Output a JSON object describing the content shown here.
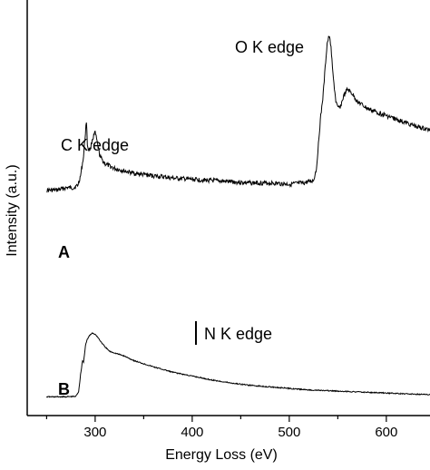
{
  "chart_data": {
    "type": "line",
    "xlabel": "Energy Loss (eV)",
    "ylabel": "Intensity (a.u.)",
    "xlim": [
      230,
      645
    ],
    "x_ticks": [
      300,
      400,
      500,
      600
    ],
    "y_ticks_shown": false,
    "grid": false,
    "legend": "none",
    "annotations": [
      {
        "text": "C K edge",
        "x": 290
      },
      {
        "text": "O K edge",
        "x": 540
      },
      {
        "text": "N K edge",
        "x": 400
      }
    ],
    "series": [
      {
        "name": "A",
        "x": [
          250,
          260,
          270,
          278,
          282,
          285,
          288,
          290,
          291,
          292,
          293,
          295,
          297,
          300,
          302,
          305,
          310,
          320,
          340,
          360,
          380,
          400,
          420,
          440,
          460,
          480,
          500,
          515,
          525,
          528,
          530,
          532,
          535,
          537,
          539,
          541,
          543,
          545,
          548,
          550,
          553,
          556,
          560,
          565,
          570,
          580,
          600,
          620,
          635,
          645
        ],
        "y": [
          0.36,
          0.36,
          0.37,
          0.37,
          0.38,
          0.42,
          0.5,
          0.6,
          0.65,
          0.55,
          0.53,
          0.53,
          0.57,
          0.6,
          0.56,
          0.5,
          0.47,
          0.45,
          0.43,
          0.42,
          0.41,
          0.405,
          0.4,
          0.395,
          0.39,
          0.39,
          0.385,
          0.39,
          0.4,
          0.45,
          0.55,
          0.65,
          0.76,
          0.87,
          0.97,
          1.0,
          0.96,
          0.84,
          0.73,
          0.7,
          0.71,
          0.75,
          0.78,
          0.76,
          0.73,
          0.7,
          0.67,
          0.64,
          0.62,
          0.61
        ]
      },
      {
        "name": "B",
        "x": [
          250,
          270,
          280,
          283,
          285,
          287,
          288,
          289,
          290,
          292,
          294,
          297,
          300,
          303,
          305,
          310,
          315,
          320,
          330,
          340,
          360,
          380,
          400,
          420,
          440,
          460,
          480,
          500,
          520,
          540,
          560,
          580,
          600,
          620,
          645
        ],
        "y": [
          0.015,
          0.016,
          0.018,
          0.05,
          0.16,
          0.25,
          0.24,
          0.29,
          0.35,
          0.39,
          0.41,
          0.43,
          0.42,
          0.4,
          0.38,
          0.34,
          0.31,
          0.3,
          0.28,
          0.25,
          0.21,
          0.175,
          0.15,
          0.125,
          0.105,
          0.09,
          0.08,
          0.07,
          0.06,
          0.055,
          0.05,
          0.045,
          0.04,
          0.035,
          0.03
        ]
      }
    ]
  }
}
